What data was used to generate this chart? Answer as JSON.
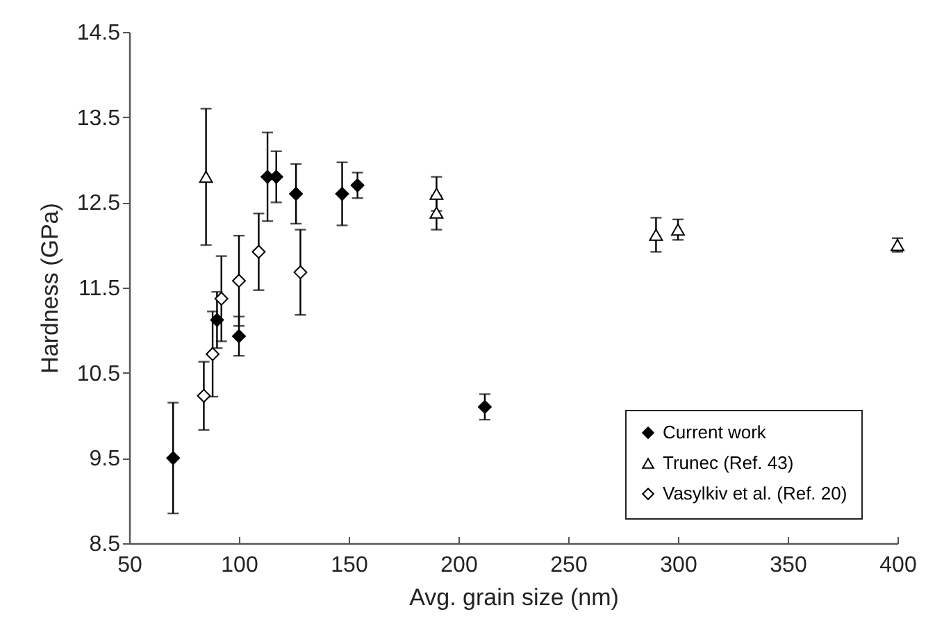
{
  "chart_data": {
    "type": "scatter",
    "xlabel": "Avg. grain size (nm)",
    "ylabel": "Hardness (GPa)",
    "xlim": [
      50,
      400
    ],
    "xticks": [
      50,
      100,
      150,
      200,
      250,
      300,
      350,
      400
    ],
    "ylim": [
      8.5,
      14.5
    ],
    "yticks": [
      8.5,
      9.5,
      10.5,
      11.5,
      12.5,
      13.5,
      14.5
    ],
    "grid": false,
    "legend": "bottom right",
    "series": [
      {
        "name": "Current work",
        "color": "#000000",
        "marker": "diamond",
        "x": [
          70,
          90,
          100,
          113,
          117,
          126,
          147,
          154,
          212
        ],
        "values": [
          9.5,
          11.12,
          10.93,
          12.8,
          12.8,
          12.6,
          12.6,
          12.7,
          10.1
        ],
        "errors": [
          0.65,
          0.33,
          0.23,
          0.52,
          0.3,
          0.35,
          0.37,
          0.15,
          0.15
        ]
      },
      {
        "name": "Trunec (Ref. 43)",
        "color": "#ffffff",
        "marker": "triangle",
        "x": [
          85,
          190,
          190,
          290,
          300,
          400
        ],
        "values": [
          12.8,
          12.6,
          12.38,
          12.12,
          12.18,
          12.0
        ],
        "errors": [
          0.8,
          0.2,
          0.2,
          0.2,
          0.12,
          0.08
        ]
      },
      {
        "name": "Vasylkiv et al. (Ref. 20)",
        "color": "#ffffff",
        "marker": "diamond",
        "x": [
          84,
          88,
          92,
          100,
          109,
          128
        ],
        "values": [
          10.23,
          10.72,
          11.37,
          11.58,
          11.92,
          11.68
        ],
        "errors": [
          0.4,
          0.5,
          0.5,
          0.53,
          0.45,
          0.5
        ]
      }
    ]
  }
}
